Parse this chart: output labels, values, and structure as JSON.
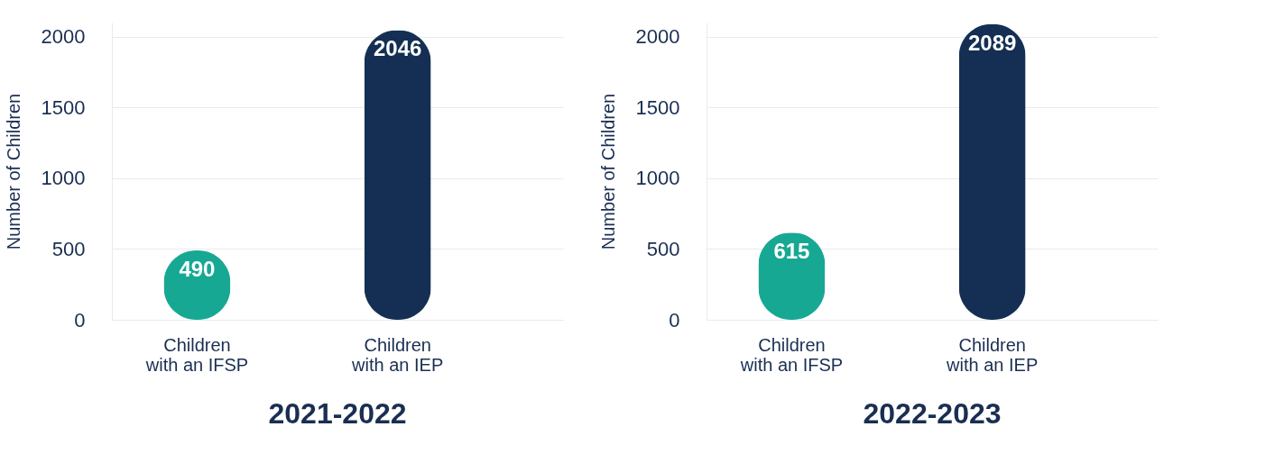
{
  "chart_data": [
    {
      "type": "bar",
      "title": "2021-2022",
      "ylabel": "Number of Children",
      "categories": [
        "Children with an IFSP",
        "Children with an IEP"
      ],
      "series": [
        {
          "colors": [
            "#17a893",
            "#142f53"
          ],
          "values": [
            490,
            2046
          ]
        }
      ],
      "ylim": [
        0,
        2100
      ],
      "yticks": [
        0,
        500,
        1000,
        1500,
        2000
      ],
      "grid": "y",
      "data_labels": true
    },
    {
      "type": "bar",
      "title": "2022-2023",
      "ylabel": "Number of Children",
      "categories": [
        "Children with an IFSP",
        "Children with an IEP"
      ],
      "series": [
        {
          "colors": [
            "#17a893",
            "#142f53"
          ],
          "values": [
            615,
            2089
          ]
        }
      ],
      "ylim": [
        0,
        2100
      ],
      "yticks": [
        0,
        500,
        1000,
        1500,
        2000
      ],
      "grid": "y",
      "data_labels": true
    }
  ]
}
